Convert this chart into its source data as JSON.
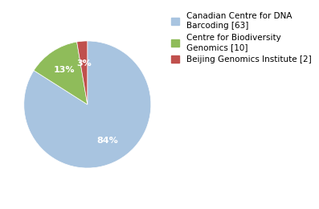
{
  "legend_labels": [
    "Canadian Centre for DNA\nBarcoding [63]",
    "Centre for Biodiversity\nGenomics [10]",
    "Beijing Genomics Institute [2]"
  ],
  "values": [
    63,
    10,
    2
  ],
  "colors": [
    "#a8c4e0",
    "#8fbc5a",
    "#c0504d"
  ],
  "background_color": "#ffffff",
  "startangle": 90,
  "label_fontsize": 7.5,
  "legend_fontsize": 7.5,
  "pct_fontsize": 8
}
